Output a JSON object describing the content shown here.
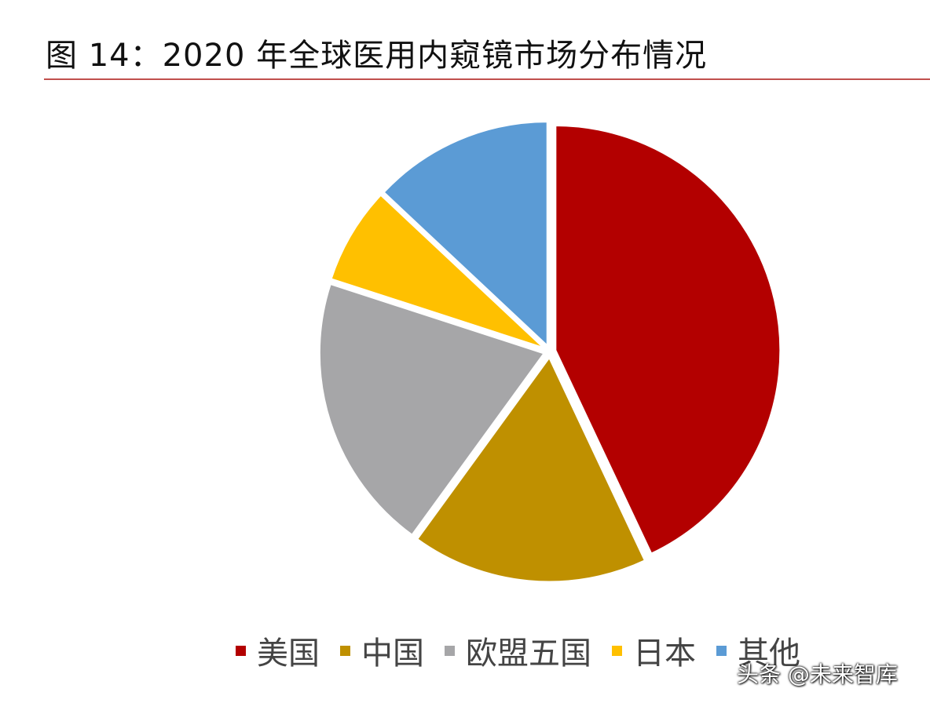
{
  "title": "图 14：2020 年全球医用内窥镜市场分布情况",
  "watermark": "头条 @未来智库",
  "colors": {
    "title_rule": "#c0504d"
  },
  "chart_data": {
    "type": "pie",
    "title": "图 14：2020 年全球医用内窥镜市场分布情况",
    "start_angle_deg": 0,
    "direction": "clockwise",
    "legend_position": "bottom",
    "categories": [
      "美国",
      "中国",
      "欧盟五国",
      "日本",
      "其他"
    ],
    "values": [
      43,
      17,
      20,
      7,
      13
    ],
    "colors": [
      "#b30000",
      "#bf9000",
      "#a6a6a8",
      "#ffc000",
      "#5b9bd5"
    ]
  }
}
